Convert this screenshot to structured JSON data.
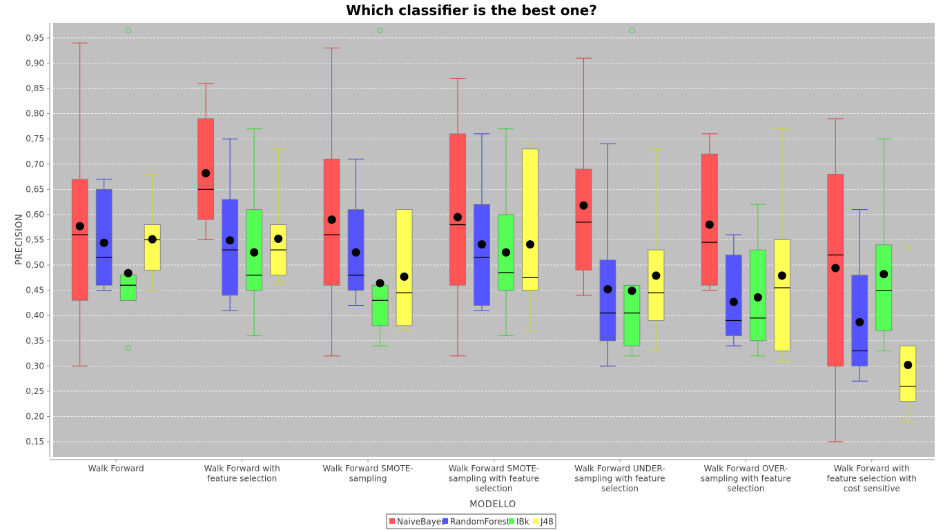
{
  "chart_data": {
    "type": "box",
    "title": "Which classifier is the best one?",
    "xlabel": "MODELLO",
    "ylabel": "PRECISION",
    "ylim": [
      0.12,
      0.98
    ],
    "yticks": [
      "0,15",
      "0,20",
      "0,25",
      "0,30",
      "0,35",
      "0,40",
      "0,45",
      "0,50",
      "0,55",
      "0,60",
      "0,65",
      "0,70",
      "0,75",
      "0,80",
      "0,85",
      "0,90",
      "0,95"
    ],
    "ytick_values": [
      0.15,
      0.2,
      0.25,
      0.3,
      0.35,
      0.4,
      0.45,
      0.5,
      0.55,
      0.6,
      0.65,
      0.7,
      0.75,
      0.8,
      0.85,
      0.9,
      0.95
    ],
    "grid": true,
    "legend_position": "bottom",
    "categories": [
      [
        "Walk Forward"
      ],
      [
        "Walk Forward  with",
        "feature selection"
      ],
      [
        "Walk Forward SMOTE-",
        "sampling"
      ],
      [
        "Walk Forward SMOTE-",
        "sampling with feature",
        "selection"
      ],
      [
        "Walk Forward UNDER-",
        "sampling with feature",
        "selection"
      ],
      [
        "Walk Forward OVER-",
        "sampling with feature",
        "selection"
      ],
      [
        "Walk Forward  with",
        "feature selection with",
        "cost sensitive"
      ]
    ],
    "series": [
      {
        "name": "NaiveBayes",
        "color": "#ff5555",
        "stroke": "#e03a3a",
        "boxes": [
          {
            "min": 0.3,
            "q1": 0.43,
            "median": 0.56,
            "q3": 0.67,
            "max": 0.94,
            "mean": 0.577,
            "outliers": []
          },
          {
            "min": 0.55,
            "q1": 0.59,
            "median": 0.65,
            "q3": 0.79,
            "max": 0.86,
            "mean": 0.682,
            "outliers": []
          },
          {
            "min": 0.32,
            "q1": 0.46,
            "median": 0.56,
            "q3": 0.71,
            "max": 0.93,
            "mean": 0.59,
            "outliers": []
          },
          {
            "min": 0.32,
            "q1": 0.46,
            "median": 0.58,
            "q3": 0.76,
            "max": 0.87,
            "mean": 0.595,
            "outliers": []
          },
          {
            "min": 0.44,
            "q1": 0.49,
            "median": 0.585,
            "q3": 0.69,
            "max": 0.91,
            "mean": 0.618,
            "outliers": []
          },
          {
            "min": 0.45,
            "q1": 0.46,
            "median": 0.545,
            "q3": 0.72,
            "max": 0.76,
            "mean": 0.58,
            "outliers": []
          },
          {
            "min": 0.15,
            "q1": 0.3,
            "median": 0.52,
            "q3": 0.68,
            "max": 0.79,
            "mean": 0.494,
            "outliers": []
          }
        ]
      },
      {
        "name": "RandomForest",
        "color": "#5555ff",
        "stroke": "#3a3ae0",
        "boxes": [
          {
            "min": 0.45,
            "q1": 0.46,
            "median": 0.515,
            "q3": 0.65,
            "max": 0.67,
            "mean": 0.544,
            "outliers": []
          },
          {
            "min": 0.41,
            "q1": 0.44,
            "median": 0.53,
            "q3": 0.63,
            "max": 0.75,
            "mean": 0.549,
            "outliers": []
          },
          {
            "min": 0.42,
            "q1": 0.45,
            "median": 0.48,
            "q3": 0.61,
            "max": 0.71,
            "mean": 0.525,
            "outliers": []
          },
          {
            "min": 0.41,
            "q1": 0.42,
            "median": 0.515,
            "q3": 0.62,
            "max": 0.76,
            "mean": 0.541,
            "outliers": []
          },
          {
            "min": 0.3,
            "q1": 0.35,
            "median": 0.405,
            "q3": 0.51,
            "max": 0.74,
            "mean": 0.452,
            "outliers": []
          },
          {
            "min": 0.34,
            "q1": 0.36,
            "median": 0.39,
            "q3": 0.52,
            "max": 0.56,
            "mean": 0.427,
            "outliers": []
          },
          {
            "min": 0.27,
            "q1": 0.3,
            "median": 0.33,
            "q3": 0.48,
            "max": 0.61,
            "mean": 0.387,
            "outliers": []
          }
        ]
      },
      {
        "name": "IBk",
        "color": "#55ff55",
        "stroke": "#3ad03a",
        "boxes": [
          {
            "min": 0.43,
            "q1": 0.43,
            "median": 0.46,
            "q3": 0.48,
            "max": 0.48,
            "mean": 0.484,
            "outliers": [
              0.335,
              0.965
            ]
          },
          {
            "min": 0.36,
            "q1": 0.45,
            "median": 0.48,
            "q3": 0.61,
            "max": 0.77,
            "mean": 0.525,
            "outliers": []
          },
          {
            "min": 0.34,
            "q1": 0.38,
            "median": 0.43,
            "q3": 0.46,
            "max": 0.46,
            "mean": 0.464,
            "outliers": [
              0.965
            ]
          },
          {
            "min": 0.36,
            "q1": 0.45,
            "median": 0.485,
            "q3": 0.6,
            "max": 0.77,
            "mean": 0.525,
            "outliers": []
          },
          {
            "min": 0.32,
            "q1": 0.34,
            "median": 0.405,
            "q3": 0.46,
            "max": 0.46,
            "mean": 0.449,
            "outliers": [
              0.965
            ]
          },
          {
            "min": 0.32,
            "q1": 0.35,
            "median": 0.395,
            "q3": 0.53,
            "max": 0.62,
            "mean": 0.436,
            "outliers": []
          },
          {
            "min": 0.33,
            "q1": 0.37,
            "median": 0.45,
            "q3": 0.54,
            "max": 0.75,
            "mean": 0.482,
            "outliers": []
          }
        ]
      },
      {
        "name": "J48",
        "color": "#ffff55",
        "stroke": "#d8d830",
        "boxes": [
          {
            "min": 0.45,
            "q1": 0.49,
            "median": 0.55,
            "q3": 0.58,
            "max": 0.68,
            "mean": 0.551,
            "outliers": []
          },
          {
            "min": 0.46,
            "q1": 0.48,
            "median": 0.53,
            "q3": 0.58,
            "max": 0.73,
            "mean": 0.552,
            "outliers": []
          },
          {
            "min": 0.37,
            "q1": 0.38,
            "median": 0.445,
            "q3": 0.61,
            "max": 0.61,
            "mean": 0.477,
            "outliers": []
          },
          {
            "min": 0.37,
            "q1": 0.45,
            "median": 0.475,
            "q3": 0.73,
            "max": 0.74,
            "mean": 0.541,
            "outliers": []
          },
          {
            "min": 0.33,
            "q1": 0.39,
            "median": 0.445,
            "q3": 0.53,
            "max": 0.73,
            "mean": 0.479,
            "outliers": []
          },
          {
            "min": 0.31,
            "q1": 0.33,
            "median": 0.455,
            "q3": 0.55,
            "max": 0.77,
            "mean": 0.479,
            "outliers": []
          },
          {
            "min": 0.19,
            "q1": 0.23,
            "median": 0.26,
            "q3": 0.34,
            "max": 0.34,
            "mean": 0.302,
            "outliers": [
              0.535
            ]
          }
        ]
      }
    ]
  }
}
